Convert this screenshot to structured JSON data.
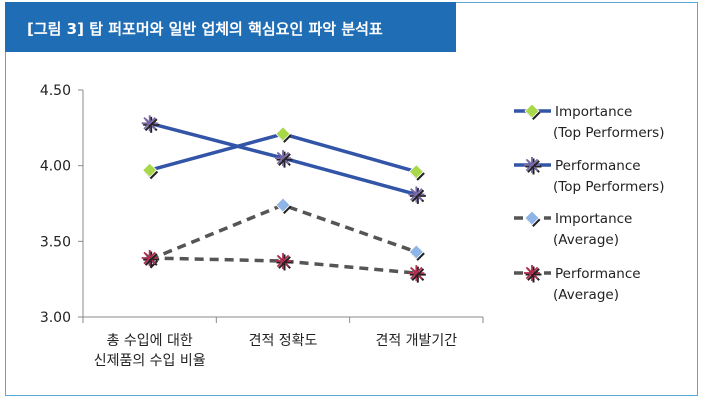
{
  "title": "[그림 3] 탑 퍼포머와 일반 업체의 핵심요인 파악 분석표",
  "colors": {
    "header_bg": "#1f6db5",
    "border": "#5aa8d6",
    "solid_line": "#3355a8",
    "dashed_line": "#555555",
    "marker_green": "#a8d84a",
    "marker_blue": "#8fb4e6",
    "marker_purple": "#7a6aa8",
    "marker_red": "#b03050"
  },
  "chart_data": {
    "type": "line",
    "categories": [
      "총 수입에 대한\n신제품의 수입 비율",
      "견적 정확도",
      "견적 개발기간"
    ],
    "ylim": [
      3.0,
      4.5
    ],
    "yticks": [
      "3.00",
      "3.50",
      "4.00",
      "4.50"
    ],
    "ytick_values": [
      3.0,
      3.5,
      4.0,
      4.5
    ],
    "grid": false,
    "legend_position": "right",
    "series": [
      {
        "name": "Importance\n(Top Performers)",
        "values": [
          3.97,
          4.21,
          3.96
        ],
        "line": "solid",
        "line_color": "#3355a8",
        "marker": "diamond",
        "marker_color": "#a8d84a"
      },
      {
        "name": "Performance\n(Top Performers)",
        "values": [
          4.28,
          4.05,
          3.81
        ],
        "line": "solid",
        "line_color": "#3355a8",
        "marker": "asterisk",
        "marker_color": "#7a6aa8"
      },
      {
        "name": "Importance\n(Average)",
        "values": [
          3.38,
          3.74,
          3.43
        ],
        "line": "dashed",
        "line_color": "#555555",
        "marker": "diamond",
        "marker_color": "#8fb4e6"
      },
      {
        "name": "Performance\n(Average)",
        "values": [
          3.39,
          3.37,
          3.29
        ],
        "line": "dashed",
        "line_color": "#555555",
        "marker": "asterisk",
        "marker_color": "#b03050"
      }
    ]
  }
}
